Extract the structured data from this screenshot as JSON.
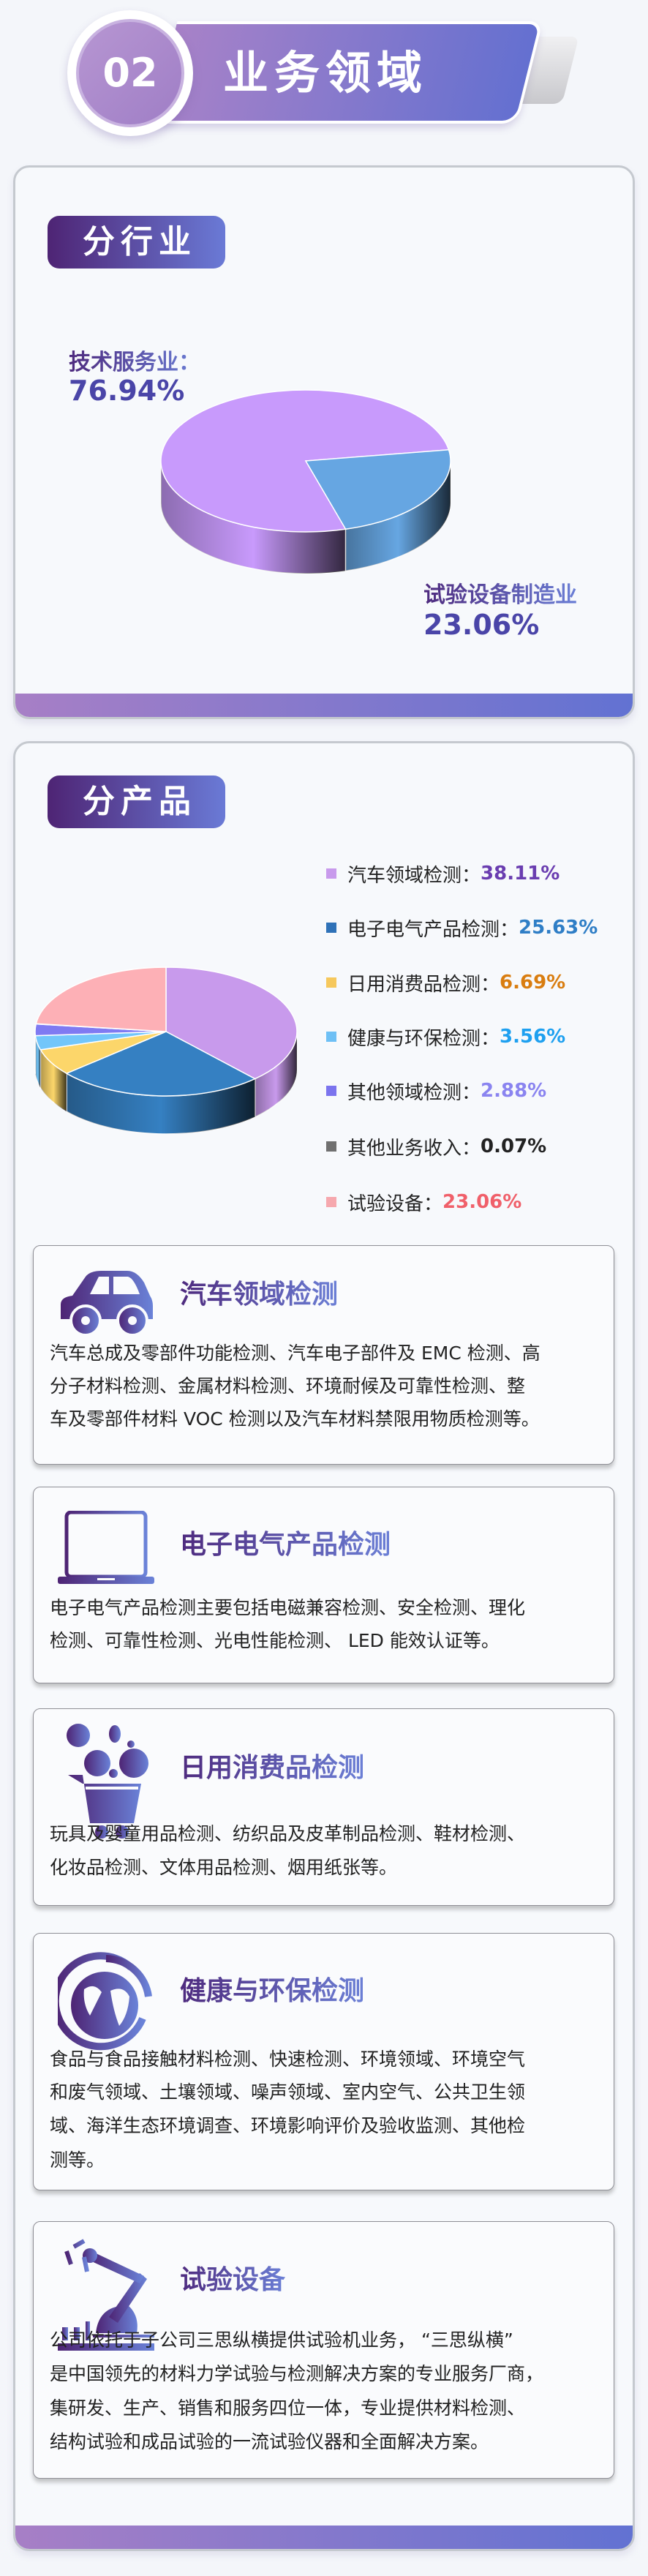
{
  "header": {
    "number": "02",
    "title": "业务领域"
  },
  "industry": {
    "tag": "分行业",
    "items": [
      {
        "label": "技术服务业：",
        "value": "76.94%",
        "color": "#c89afc"
      },
      {
        "label": "试验设备制造业",
        "value": "23.06%",
        "color": "#66a6e2"
      }
    ]
  },
  "product": {
    "tag": "分产品",
    "legend": [
      {
        "label": "汽车领域检测：",
        "value": "38.11%",
        "color": "#c89aec",
        "value_color": "#6a3db0"
      },
      {
        "label": "电子电气产品检测：",
        "value": "25.63%",
        "color": "#2f72b8",
        "value_color": "#2f7ec6"
      },
      {
        "label": "日用消费品检测：",
        "value": "6.69%",
        "color": "#f6c85c",
        "value_color": "#d97d10"
      },
      {
        "label": "健康与环保检测：",
        "value": "3.56%",
        "color": "#6ec0f5",
        "value_color": "#1ea0f0"
      },
      {
        "label": "其他领域检测：",
        "value": "2.88%",
        "color": "#7b74ee",
        "value_color": "#8a84f0"
      },
      {
        "label": "其他业务收入：",
        "value": "0.07%",
        "color": "#707070",
        "value_color": "#222222"
      },
      {
        "label": "试验设备：",
        "value": "23.06%",
        "color": "#f6a8ae",
        "value_color": "#f0606a"
      }
    ]
  },
  "chart_data": [
    {
      "type": "pie",
      "categories": [
        "技术服务业",
        "试验设备制造业"
      ],
      "values": [
        76.94,
        23.06
      ],
      "colors": [
        "#c89afc",
        "#66a6e2"
      ]
    },
    {
      "type": "pie",
      "categories": [
        "汽车领域检测",
        "电子电气产品检测",
        "日用消费品检测",
        "健康与环保检测",
        "其他领域检测",
        "其他业务收入",
        "试验设备"
      ],
      "values": [
        38.11,
        25.63,
        6.69,
        3.56,
        2.88,
        0.07,
        23.06
      ],
      "colors": [
        "#c89aec",
        "#3580c2",
        "#fcd66a",
        "#72c6fa",
        "#7f7af2",
        "#777777",
        "#fdb0b6"
      ]
    }
  ],
  "cards": [
    {
      "icon": "car-icon",
      "title": "汽车领域检测",
      "lines": [
        "汽车总成及零部件功能检测、汽车电子部件及 EMC 检测、高",
        "分子材料检测、金属材料检测、环境耐候及可靠性检测、整",
        "车及零部件材料 VOC 检测以及汽车材料禁限用物质检测等。"
      ]
    },
    {
      "icon": "laptop-icon",
      "title": "电子电气产品检测",
      "lines": [
        "电子电气产品检测主要包括电磁兼容检测、安全检测、理化",
        "检测、可靠性检测、光电性能检测、 LED 能效认证等。"
      ]
    },
    {
      "icon": "shopping-cart-icon",
      "title": "日用消费品检测",
      "lines": [
        "玩具及婴童用品检测、纺织品及皮革制品检测、鞋材检测、",
        "化妆品检测、文体用品检测、烟用纸张等。"
      ]
    },
    {
      "icon": "globe-recycle-icon",
      "title": "健康与环保检测",
      "lines": [
        "食品与食品接触材料检测、快速检测、环境领域、环境空气",
        "和废气领域、土壤领域、噪声领域、室内空气、公共卫生领",
        "域、海洋生态环境调查、环境影响评价及验收监测、其他检",
        "测等。"
      ]
    },
    {
      "icon": "robot-arm-icon",
      "title": "试验设备",
      "lines": [
        "公司依托于子公司三思纵横提供试验机业务， “三思纵横”",
        "是中国领先的材料力学试验与检测解决方案的专业服务厂商，",
        "集研发、生产、销售和服务四位一体，专业提供材料检测、",
        "结构试验和成品试验的一流试验仪器和全面解决方案。"
      ]
    }
  ]
}
